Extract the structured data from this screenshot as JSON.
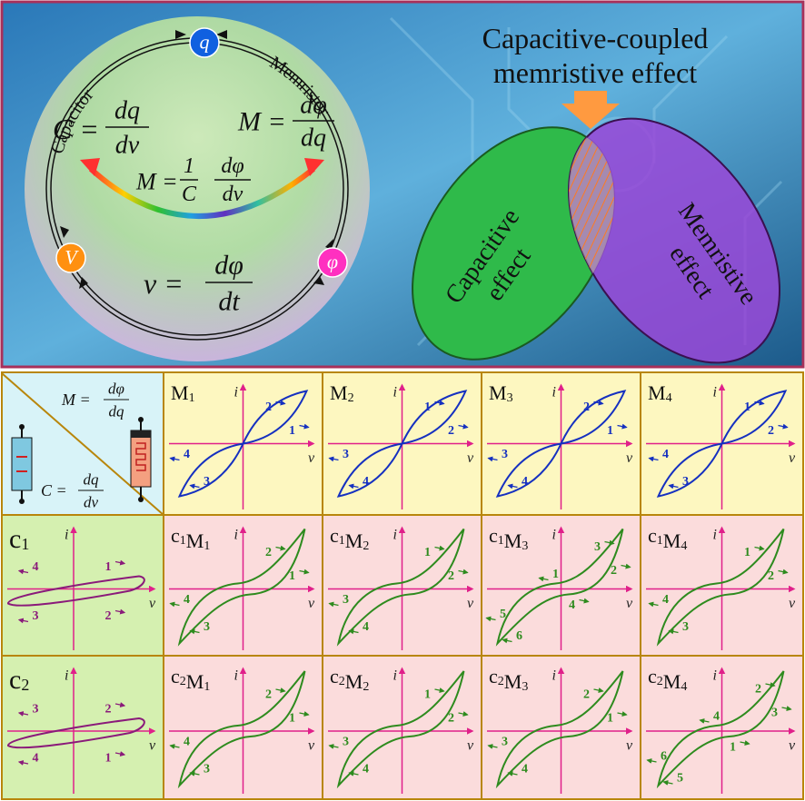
{
  "top": {
    "title": [
      "Capacitive-coupled",
      "memristive effect"
    ],
    "capacitor": "Capacitor",
    "memristor": "Memristor",
    "nodes": {
      "q": "q",
      "v": "V",
      "phi": "φ"
    },
    "eq_capacitor": {
      "lhs": "C =",
      "num": "dq",
      "den": "dv"
    },
    "eq_memristor": {
      "lhs": "M =",
      "num": "dφ",
      "den": "dq"
    },
    "eq_coupled": {
      "lhs": "M =",
      "num1": "1",
      "den1": "C",
      "num2": "dφ",
      "den2": "dv"
    },
    "eq_voltage": {
      "lhs": "v =",
      "num": "dφ",
      "den": "dt"
    },
    "capacitive_effect": [
      "Capacitive",
      "effect"
    ],
    "memristive_effect": [
      "Memristive",
      "effect"
    ]
  },
  "grid": {
    "axis_labels": {
      "current": "i",
      "voltage": "v"
    },
    "columns": [
      {
        "label": [
          {
            "text": "M",
            "sub": "1"
          }
        ],
        "arrows": [
          "2",
          "1",
          "4",
          "3"
        ]
      },
      {
        "label": [
          {
            "text": "M",
            "sub": "2"
          }
        ],
        "arrows": [
          "1",
          "2",
          "3",
          "4"
        ]
      },
      {
        "label": [
          {
            "text": "M",
            "sub": "3"
          }
        ],
        "arrows": [
          "2",
          "1",
          "3",
          "4"
        ]
      },
      {
        "label": [
          {
            "text": "M",
            "sub": "4"
          }
        ],
        "arrows": [
          "1",
          "2",
          "4",
          "3"
        ]
      }
    ],
    "rows": [
      {
        "head": {
          "label": [
            {
              "text": "c",
              "sub": "1"
            }
          ],
          "arrows": [
            "4",
            "1",
            "3",
            "2"
          ]
        },
        "cells": [
          {
            "label": [
              {
                "text": "c",
                "sub": "1"
              },
              {
                "text": "M",
                "sub": "1"
              }
            ],
            "arrows": [
              "2",
              "1",
              "4",
              "3"
            ]
          },
          {
            "label": [
              {
                "text": "c",
                "sub": "1"
              },
              {
                "text": "M",
                "sub": "2"
              }
            ],
            "arrows": [
              "1",
              "2",
              "3",
              "4"
            ]
          },
          {
            "label": [
              {
                "text": "c",
                "sub": "1"
              },
              {
                "text": "M",
                "sub": "3"
              }
            ],
            "arrows": [
              "3",
              "2",
              "1",
              "4",
              "5",
              "6"
            ]
          },
          {
            "label": [
              {
                "text": "c",
                "sub": "1"
              },
              {
                "text": "M",
                "sub": "4"
              }
            ],
            "arrows": [
              "1",
              "2",
              "4",
              "3"
            ]
          }
        ]
      },
      {
        "head": {
          "label": [
            {
              "text": "c",
              "sub": "2"
            }
          ],
          "arrows": [
            "3",
            "2",
            "4",
            "1"
          ]
        },
        "cells": [
          {
            "label": [
              {
                "text": "c",
                "sub": "2"
              },
              {
                "text": "M",
                "sub": "1"
              }
            ],
            "arrows": [
              "2",
              "1",
              "4",
              "3"
            ]
          },
          {
            "label": [
              {
                "text": "c",
                "sub": "2"
              },
              {
                "text": "M",
                "sub": "2"
              }
            ],
            "arrows": [
              "1",
              "2",
              "3",
              "4"
            ]
          },
          {
            "label": [
              {
                "text": "c",
                "sub": "2"
              },
              {
                "text": "M",
                "sub": "3"
              }
            ],
            "arrows": [
              "2",
              "1",
              "3",
              "4"
            ]
          },
          {
            "label": [
              {
                "text": "c",
                "sub": "2"
              },
              {
                "text": "M",
                "sub": "4"
              }
            ],
            "arrows": [
              "2",
              "3",
              "4",
              "1",
              "6",
              "5"
            ]
          }
        ]
      }
    ]
  }
}
